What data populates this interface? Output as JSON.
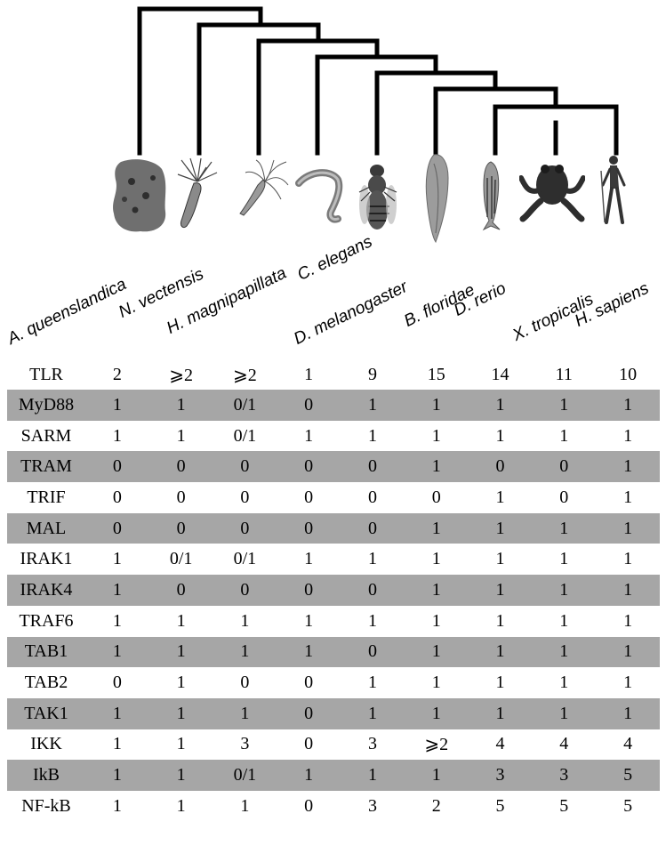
{
  "species": [
    {
      "name": "A. queenslandica",
      "icon": "sponge-icon"
    },
    {
      "name": "N. vectensis",
      "icon": "sea-anemone-icon"
    },
    {
      "name": "H. magnipapillata",
      "icon": "hydra-icon"
    },
    {
      "name": "C. elegans",
      "icon": "nematode-icon"
    },
    {
      "name": "D. melanogaster",
      "icon": "fruit-fly-icon"
    },
    {
      "name": "B. floridae",
      "icon": "lancelet-icon"
    },
    {
      "name": "D. rerio",
      "icon": "zebrafish-icon"
    },
    {
      "name": "X. tropicalis",
      "icon": "frog-icon"
    },
    {
      "name": "H. sapiens",
      "icon": "human-icon"
    }
  ],
  "tree_color": "#000000",
  "shade_color": "#a6a6a6",
  "table": {
    "rows": [
      {
        "gene": "TLR",
        "values": [
          "2",
          "⩾2",
          "⩾2",
          "1",
          "9",
          "15",
          "14",
          "11",
          "10"
        ],
        "shaded": false
      },
      {
        "gene": "MyD88",
        "values": [
          "1",
          "1",
          "0/1",
          "0",
          "1",
          "1",
          "1",
          "1",
          "1"
        ],
        "shaded": true
      },
      {
        "gene": "SARM",
        "values": [
          "1",
          "1",
          "0/1",
          "1",
          "1",
          "1",
          "1",
          "1",
          "1"
        ],
        "shaded": false
      },
      {
        "gene": "TRAM",
        "values": [
          "0",
          "0",
          "0",
          "0",
          "0",
          "1",
          "0",
          "0",
          "1"
        ],
        "shaded": true
      },
      {
        "gene": "TRIF",
        "values": [
          "0",
          "0",
          "0",
          "0",
          "0",
          "0",
          "1",
          "0",
          "1"
        ],
        "shaded": false
      },
      {
        "gene": "MAL",
        "values": [
          "0",
          "0",
          "0",
          "0",
          "0",
          "1",
          "1",
          "1",
          "1"
        ],
        "shaded": true
      },
      {
        "gene": "IRAK1",
        "values": [
          "1",
          "0/1",
          "0/1",
          "1",
          "1",
          "1",
          "1",
          "1",
          "1"
        ],
        "shaded": false
      },
      {
        "gene": "IRAK4",
        "values": [
          "1",
          "0",
          "0",
          "0",
          "0",
          "1",
          "1",
          "1",
          "1"
        ],
        "shaded": true
      },
      {
        "gene": "TRAF6",
        "values": [
          "1",
          "1",
          "1",
          "1",
          "1",
          "1",
          "1",
          "1",
          "1"
        ],
        "shaded": false
      },
      {
        "gene": "TAB1",
        "values": [
          "1",
          "1",
          "1",
          "1",
          "0",
          "1",
          "1",
          "1",
          "1"
        ],
        "shaded": true
      },
      {
        "gene": "TAB2",
        "values": [
          "0",
          "1",
          "0",
          "0",
          "1",
          "1",
          "1",
          "1",
          "1"
        ],
        "shaded": false
      },
      {
        "gene": "TAK1",
        "values": [
          "1",
          "1",
          "1",
          "0",
          "1",
          "1",
          "1",
          "1",
          "1"
        ],
        "shaded": true
      },
      {
        "gene": "IKK",
        "values": [
          "1",
          "1",
          "3",
          "0",
          "3",
          "⩾2",
          "4",
          "4",
          "4"
        ],
        "shaded": false
      },
      {
        "gene": "IkB",
        "values": [
          "1",
          "1",
          "0/1",
          "1",
          "1",
          "1",
          "3",
          "3",
          "5"
        ],
        "shaded": true
      },
      {
        "gene": "NF-kB",
        "values": [
          "1",
          "1",
          "1",
          "0",
          "3",
          "2",
          "5",
          "5",
          "5"
        ],
        "shaded": false
      }
    ]
  }
}
